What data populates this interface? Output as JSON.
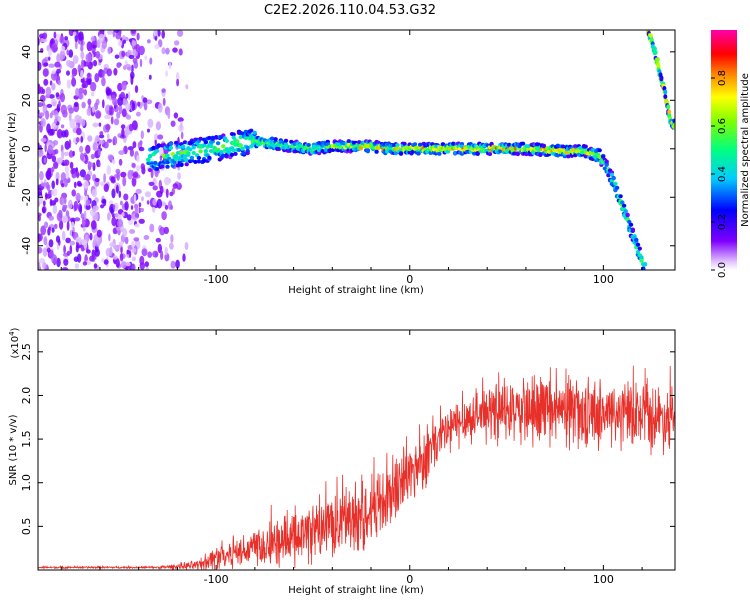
{
  "page": {
    "title": "C2E2.2026.110.04.53.G32"
  },
  "chart_data": [
    {
      "type": "heatmap",
      "name": "spectrogram",
      "title": "C2E2.2026.110.04.53.G32",
      "xlabel": "Height of straight line (km)",
      "ylabel": "Frequency (Hz)",
      "xlim": [
        -192,
        137
      ],
      "ylim": [
        -50,
        49
      ],
      "xticks": [
        -100,
        0,
        100
      ],
      "xtick_labels": [
        "-100",
        "0",
        "100"
      ],
      "yticks": [
        -40,
        -20,
        0,
        20,
        40
      ],
      "ytick_labels": [
        "-40",
        "-20",
        "0",
        "20",
        "40"
      ],
      "colorbar": {
        "label": "Normalized spectral amplitude",
        "range": [
          0,
          1
        ],
        "ticks": [
          0,
          0.2,
          0.4,
          0.6,
          0.8
        ],
        "tick_labels": [
          "0.0",
          "0.2",
          "0.4",
          "0.6",
          "0.8"
        ]
      },
      "noise_region_x": [
        -192,
        -115
      ],
      "signal_track": {
        "x": [
          -135,
          -120,
          -110,
          -100,
          -90,
          -80,
          -70,
          -60,
          -50,
          -40,
          -30,
          -20,
          -10,
          0,
          20,
          40,
          60,
          80,
          90,
          98,
          102,
          106,
          110,
          114,
          118,
          122
        ],
        "freq": [
          -4,
          -2,
          -1,
          0,
          2,
          3,
          2,
          1,
          0,
          1,
          1,
          1,
          0,
          0,
          0,
          0,
          0,
          -1,
          -1,
          -3,
          -8,
          -15,
          -24,
          -33,
          -42,
          -50
        ]
      },
      "aliased_track": {
        "x": [
          123,
          126,
          129,
          132,
          135
        ],
        "freq": [
          49,
          42,
          32,
          22,
          10
        ]
      }
    },
    {
      "type": "line",
      "name": "snr",
      "xlabel": "Height of straight line (km)",
      "ylabel": "SNR (10 * v/v)",
      "y_multiplier_label": "(x10",
      "y_multiplier_exponent": "4",
      "y_multiplier_close": ")",
      "xlim": [
        -192,
        137
      ],
      "ylim": [
        0,
        2.75
      ],
      "xticks": [
        -100,
        0,
        100
      ],
      "xtick_labels": [
        "-100",
        "0",
        "100"
      ],
      "yticks": [
        0.5,
        1.0,
        1.5,
        2.0,
        2.5
      ],
      "ytick_labels": [
        "0.5",
        "1.0",
        "1.5",
        "2.0",
        "2.5"
      ],
      "series": [
        {
          "name": "SNR",
          "color": "#e8302a",
          "envelope_x": [
            -192,
            -130,
            -110,
            -100,
            -90,
            -80,
            -70,
            -60,
            -50,
            -40,
            -30,
            -20,
            -10,
            0,
            10,
            20,
            30,
            40,
            60,
            80,
            100,
            120,
            137
          ],
          "envelope_mean": [
            0.03,
            0.03,
            0.05,
            0.15,
            0.2,
            0.28,
            0.3,
            0.35,
            0.45,
            0.5,
            0.6,
            0.7,
            0.85,
            1.1,
            1.35,
            1.6,
            1.75,
            1.8,
            1.8,
            1.8,
            1.8,
            1.75,
            1.75
          ],
          "envelope_spread": [
            0.01,
            0.01,
            0.05,
            0.12,
            0.15,
            0.2,
            0.22,
            0.25,
            0.28,
            0.3,
            0.33,
            0.35,
            0.35,
            0.3,
            0.28,
            0.25,
            0.22,
            0.25,
            0.3,
            0.32,
            0.32,
            0.32,
            0.3
          ]
        }
      ]
    }
  ]
}
